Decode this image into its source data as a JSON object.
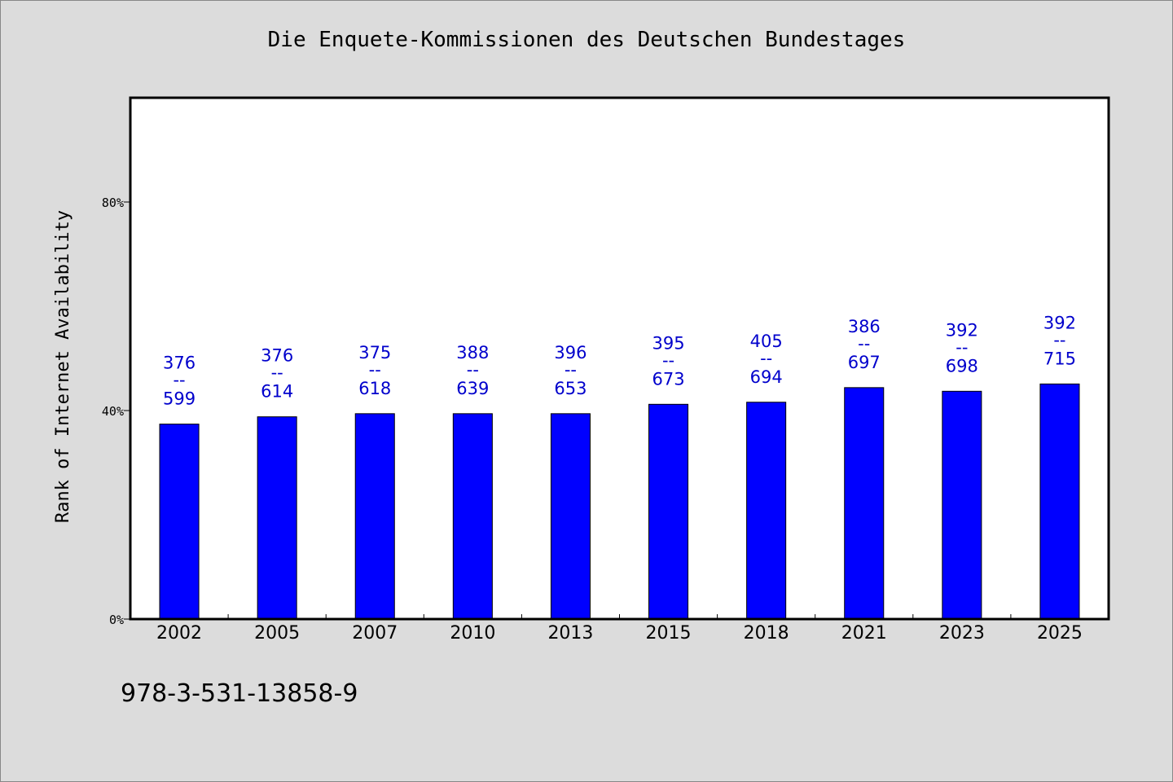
{
  "chart_data": {
    "type": "bar",
    "title": "Die Enquete-Kommissionen des Deutschen Bundestages",
    "ylabel": "Rank of Internet Availability",
    "xlabel": "",
    "categories": [
      "2002",
      "2005",
      "2007",
      "2010",
      "2013",
      "2015",
      "2018",
      "2021",
      "2023",
      "2025"
    ],
    "values": [
      37.4,
      38.8,
      39.4,
      39.4,
      39.4,
      41.2,
      41.6,
      44.4,
      43.7,
      45.1
    ],
    "value_unit": "%",
    "bar_labels": [
      {
        "top": "376",
        "sep": "--",
        "bottom": "599"
      },
      {
        "top": "376",
        "sep": "--",
        "bottom": "614"
      },
      {
        "top": "375",
        "sep": "--",
        "bottom": "618"
      },
      {
        "top": "388",
        "sep": "--",
        "bottom": "639"
      },
      {
        "top": "396",
        "sep": "--",
        "bottom": "653"
      },
      {
        "top": "395",
        "sep": "--",
        "bottom": "673"
      },
      {
        "top": "405",
        "sep": "--",
        "bottom": "694"
      },
      {
        "top": "386",
        "sep": "--",
        "bottom": "697"
      },
      {
        "top": "392",
        "sep": "--",
        "bottom": "698"
      },
      {
        "top": "392",
        "sep": "--",
        "bottom": "715"
      }
    ],
    "ylim": [
      0,
      100
    ],
    "yticks": [
      {
        "value": 0,
        "label": "0%"
      },
      {
        "value": 40,
        "label": "40%"
      },
      {
        "value": 80,
        "label": "80%"
      }
    ],
    "grid": false,
    "legend": "none"
  },
  "footnote": "978-3-531-13858-9",
  "colors": {
    "bar": "#0000ff",
    "bar_label": "#0000cc",
    "plot_background": "#ffffff",
    "page_background": "#dcdcdc",
    "axis": "#000000"
  }
}
